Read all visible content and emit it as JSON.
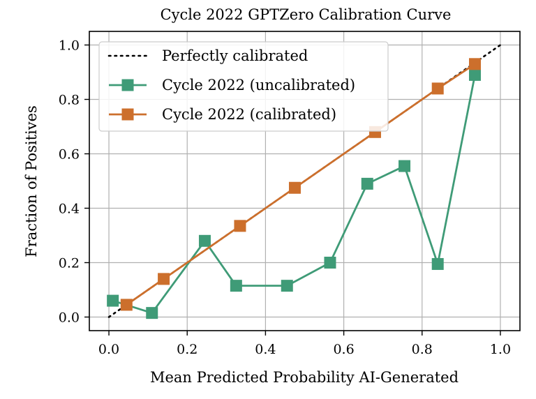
{
  "chart_data": {
    "type": "line",
    "title": "Cycle 2022 GPTZero Calibration Curve",
    "xlabel": "Mean Predicted Probability AI-Generated",
    "ylabel": "Fraction of Positives",
    "xlim": [
      -0.05,
      1.05
    ],
    "ylim": [
      -0.05,
      1.05
    ],
    "xticks": [
      "0.0",
      "0.2",
      "0.4",
      "0.6",
      "0.8",
      "1.0"
    ],
    "yticks": [
      "0.0",
      "0.2",
      "0.4",
      "0.6",
      "0.8",
      "1.0"
    ],
    "grid": true,
    "legend_position": "top-left",
    "series": [
      {
        "name": "Perfectly calibrated",
        "style": "dotted",
        "color": "#000000",
        "x": [
          0.0,
          1.0
        ],
        "y": [
          0.0,
          1.0
        ]
      },
      {
        "name": "Cycle 2022 (uncalibrated)",
        "style": "solid-square",
        "color": "#3f9b77",
        "x": [
          0.01,
          0.11,
          0.245,
          0.325,
          0.455,
          0.565,
          0.66,
          0.755,
          0.84,
          0.935
        ],
        "y": [
          0.06,
          0.015,
          0.28,
          0.115,
          0.115,
          0.2,
          0.49,
          0.555,
          0.195,
          0.89
        ]
      },
      {
        "name": "Cycle 2022 (calibrated)",
        "style": "solid-square",
        "color": "#cc6f2c",
        "x": [
          0.045,
          0.14,
          0.335,
          0.475,
          0.68,
          0.84,
          0.935
        ],
        "y": [
          0.045,
          0.14,
          0.335,
          0.475,
          0.68,
          0.84,
          0.93
        ]
      }
    ]
  }
}
